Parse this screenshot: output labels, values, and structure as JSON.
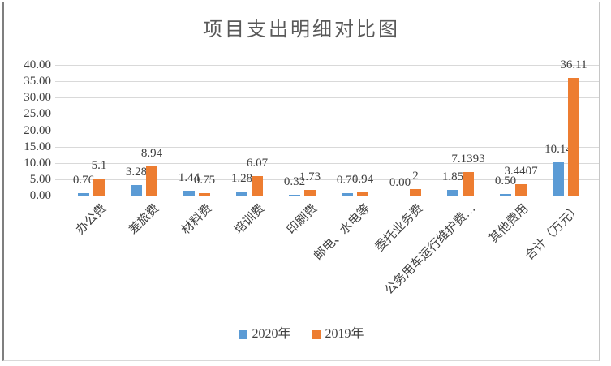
{
  "chart_data": {
    "type": "bar",
    "title": "项目支出明细对比图",
    "categories": [
      "办公费",
      "差旅费",
      "材料费",
      "培训费",
      "印刷费",
      "邮电、水电等",
      "委托业务费",
      "公务用车运行维护费…",
      "其他费用",
      "合计（万元）"
    ],
    "series": [
      {
        "name": "2020年",
        "color": "#5B9BD5",
        "values": [
          0.76,
          3.28,
          1.44,
          1.28,
          0.32,
          0.71,
          0.0,
          1.85,
          0.5,
          10.14
        ],
        "labels": [
          "0.76",
          "3.28",
          "1.44",
          "1.28",
          "0.32",
          "0.71",
          "0.00",
          "1.85",
          "0.50",
          "10.14"
        ]
      },
      {
        "name": "2019年",
        "color": "#ED7D31",
        "values": [
          5.1,
          8.94,
          0.75,
          6.07,
          1.73,
          0.94,
          2,
          7.1393,
          3.4407,
          36.11
        ],
        "labels": [
          "5.1",
          "8.94",
          "0.75",
          "6.07",
          "1.73",
          "0.94",
          "2",
          "7.1393",
          "3.4407",
          "36.11"
        ]
      }
    ],
    "y_axis": {
      "min": 0,
      "max": 40,
      "step": 5,
      "tick_labels": [
        "0.00",
        "5.00",
        "10.00",
        "15.00",
        "20.00",
        "25.00",
        "30.00",
        "35.00",
        "40.00"
      ]
    },
    "grid": true,
    "data_labels": true,
    "legend_position": "bottom",
    "colors": {
      "gridline": "#d9d9d9",
      "axis_line": "#c9c9c9",
      "text": "#404040",
      "title": "#595959"
    }
  }
}
